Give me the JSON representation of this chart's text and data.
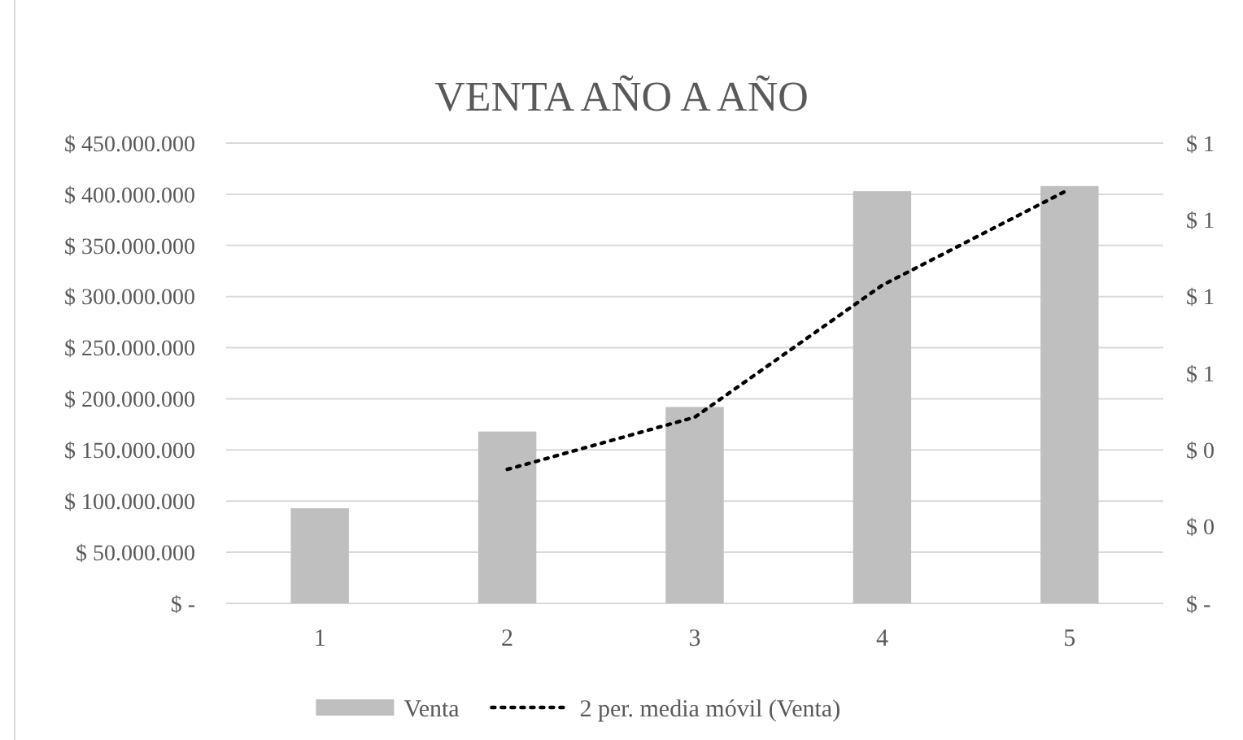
{
  "chart_data": {
    "type": "bar",
    "title": "VENTA AÑO A AÑO",
    "categories": [
      "1",
      "2",
      "3",
      "4",
      "5"
    ],
    "series": [
      {
        "name": "Venta",
        "color": "#bfbfbf",
        "values": [
          93000000,
          168000000,
          192000000,
          403000000,
          408000000
        ]
      },
      {
        "name": "2 per. media móvil (Venta)",
        "type": "line",
        "color": "#000000",
        "line_style": "dotted",
        "marker": "none",
        "values": [
          null,
          131000000,
          182000000,
          311000000,
          405000000
        ]
      }
    ],
    "ylim": [
      0,
      450000000
    ],
    "yticks": [
      {
        "value": 0,
        "label": "$ -"
      },
      {
        "value": 50000000,
        "label": "$ 50.000.000"
      },
      {
        "value": 100000000,
        "label": "$ 100.000.000"
      },
      {
        "value": 150000000,
        "label": "$ 150.000.000"
      },
      {
        "value": 200000000,
        "label": "$ 200.000.000"
      },
      {
        "value": 250000000,
        "label": "$ 250.000.000"
      },
      {
        "value": 300000000,
        "label": "$ 300.000.000"
      },
      {
        "value": 350000000,
        "label": "$ 350.000.000"
      },
      {
        "value": 400000000,
        "label": "$ 400.000.000"
      },
      {
        "value": 450000000,
        "label": "$ 450.000.000"
      }
    ],
    "y2lim": [
      0,
      1.2
    ],
    "y2ticks": [
      {
        "value": 0,
        "label": "$ -"
      },
      {
        "value": 0.2,
        "label": "$ 0"
      },
      {
        "value": 0.4,
        "label": "$ 0"
      },
      {
        "value": 0.6,
        "label": "$ 1"
      },
      {
        "value": 0.8,
        "label": "$ 1"
      },
      {
        "value": 1.0,
        "label": "$ 1"
      },
      {
        "value": 1.2,
        "label": "$ 1"
      }
    ],
    "grid": "y",
    "legend": "bottom"
  }
}
